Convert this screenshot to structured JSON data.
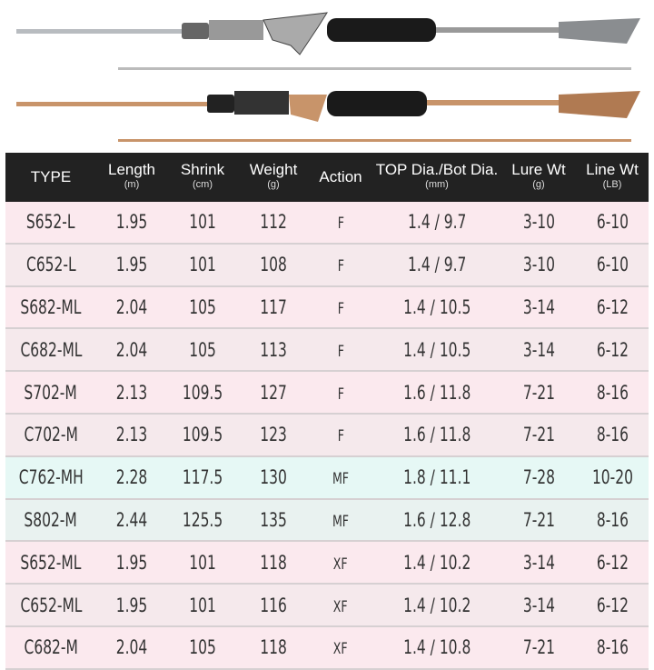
{
  "headers": [
    {
      "label": "TYPE",
      "unit": ""
    },
    {
      "label": "Length",
      "unit": "(m)"
    },
    {
      "label": "Shrink",
      "unit": "(cm)"
    },
    {
      "label": "Weight",
      "unit": "(g)"
    },
    {
      "label": "Action",
      "unit": ""
    },
    {
      "label": "TOP Dia./Bot Dia.",
      "unit": "(mm)"
    },
    {
      "label": "Lure Wt",
      "unit": "(g)"
    },
    {
      "label": "Line Wt",
      "unit": "(LB)"
    }
  ],
  "rows": [
    [
      "S652-L",
      "1.95",
      "101",
      "112",
      "F",
      "1.4 / 9.7",
      "3-10",
      "6-10"
    ],
    [
      "C652-L",
      "1.95",
      "101",
      "108",
      "F",
      "1.4 / 9.7",
      "3-10",
      "6-10"
    ],
    [
      "S682-ML",
      "2.04",
      "105",
      "117",
      "F",
      "1.4 / 10.5",
      "3-14",
      "6-12"
    ],
    [
      "C682-ML",
      "2.04",
      "105",
      "113",
      "F",
      "1.4 / 10.5",
      "3-14",
      "6-12"
    ],
    [
      "S702-M",
      "2.13",
      "109.5",
      "127",
      "F",
      "1.6 / 11.8",
      "7-21",
      "8-16"
    ],
    [
      "C702-M",
      "2.13",
      "109.5",
      "123",
      "F",
      "1.6 / 11.8",
      "7-21",
      "8-16"
    ],
    [
      "C762-MH",
      "2.28",
      "117.5",
      "130",
      "MF",
      "1.8 / 11.1",
      "7-28",
      "10-20"
    ],
    [
      "S802-M",
      "2.44",
      "125.5",
      "135",
      "MF",
      "1.6 / 12.8",
      "7-21",
      "8-16"
    ],
    [
      "S652-ML",
      "1.95",
      "101",
      "118",
      "XF",
      "1.4 / 10.2",
      "3-14",
      "6-12"
    ],
    [
      "C652-ML",
      "1.95",
      "101",
      "116",
      "XF",
      "1.4 / 10.2",
      "3-14",
      "6-12"
    ],
    [
      "C682-M",
      "2.04",
      "105",
      "118",
      "XF",
      "1.4 / 10.8",
      "7-21",
      "8-16"
    ]
  ],
  "row_styles": [
    "pink1",
    "pink2",
    "pink1",
    "pink2",
    "pink1",
    "pink2",
    "cyan1",
    "cyan2",
    "pink1",
    "pink2",
    "pink1"
  ],
  "colors": {
    "header_bg": "#222222",
    "pink_row": "#fbe9ee",
    "cyan_row": "#e6f8f5",
    "silver_rod": "#b8bcc0",
    "copper_rod": "#c8946a"
  }
}
